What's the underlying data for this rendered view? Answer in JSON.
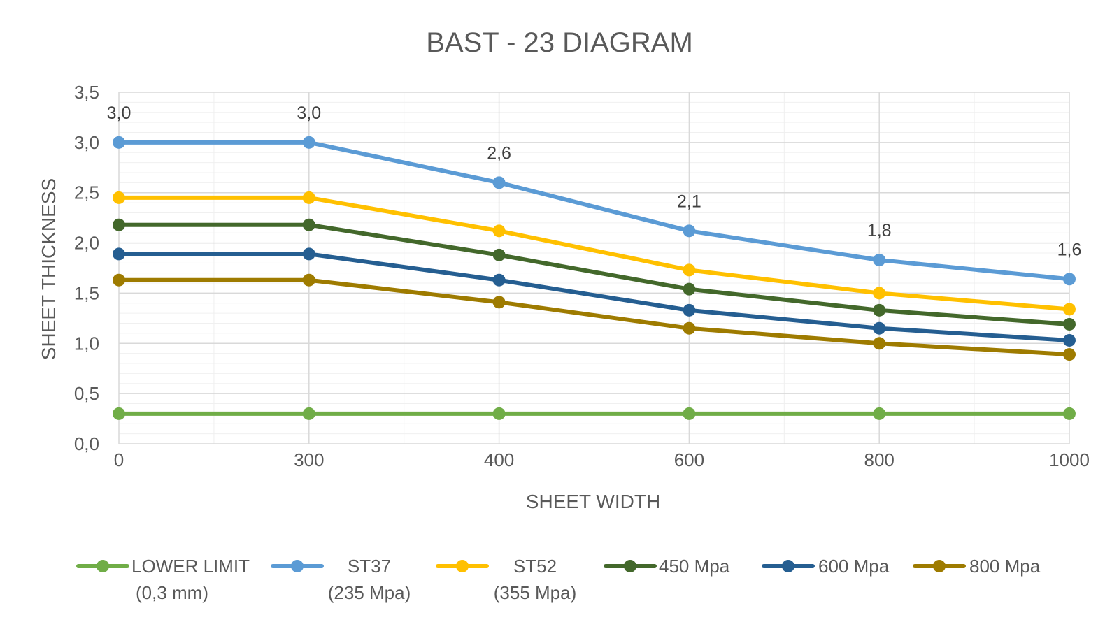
{
  "chart_data": {
    "type": "line",
    "title": "BAST - 23 DIAGRAM",
    "xlabel": "SHEET WIDTH",
    "ylabel": "SHEET THICKNESS",
    "categories": [
      "0",
      "300",
      "400",
      "600",
      "800",
      "1000"
    ],
    "x_tick_labels": [
      "0",
      "300",
      "400",
      "600",
      "800",
      "1000"
    ],
    "y_tick_labels": [
      "0,0",
      "0,5",
      "1,0",
      "1,5",
      "2,0",
      "2,5",
      "3,0",
      "3,5"
    ],
    "ylim": [
      0,
      3.5
    ],
    "y_major_step": 0.5,
    "y_minor_step": 0.1,
    "grid": true,
    "legend_position": "bottom",
    "series": [
      {
        "name": "LOWER LIMIT (0,3 mm)",
        "legend_lines": [
          "LOWER LIMIT",
          "(0,3 mm)"
        ],
        "color": "#70ad47",
        "shadow": true,
        "values": [
          0.3,
          0.3,
          0.3,
          0.3,
          0.3,
          0.3
        ]
      },
      {
        "name": "ST37 (235 Mpa)",
        "legend_lines": [
          "ST37",
          "(235 Mpa)"
        ],
        "color": "#5b9bd5",
        "values": [
          3.0,
          3.0,
          2.6,
          2.12,
          1.83,
          1.64
        ],
        "data_labels": [
          "3,0",
          "3,0",
          "2,6",
          "2,1",
          "1,8",
          "1,6"
        ]
      },
      {
        "name": "ST52 (355 Mpa)",
        "legend_lines": [
          "ST52",
          "(355 Mpa)"
        ],
        "color": "#ffc000",
        "values": [
          2.45,
          2.45,
          2.12,
          1.73,
          1.5,
          1.34
        ]
      },
      {
        "name": "450  Mpa",
        "legend_lines": [
          "450  Mpa"
        ],
        "color": "#43682b",
        "values": [
          2.18,
          2.18,
          1.88,
          1.54,
          1.33,
          1.19
        ]
      },
      {
        "name": "600 Mpa",
        "legend_lines": [
          "600 Mpa"
        ],
        "color": "#255e91",
        "values": [
          1.89,
          1.89,
          1.63,
          1.33,
          1.15,
          1.03
        ]
      },
      {
        "name": "800 Mpa",
        "legend_lines": [
          "800 Mpa"
        ],
        "color": "#9e7b00",
        "values": [
          1.63,
          1.63,
          1.41,
          1.15,
          1.0,
          0.89
        ]
      }
    ]
  }
}
